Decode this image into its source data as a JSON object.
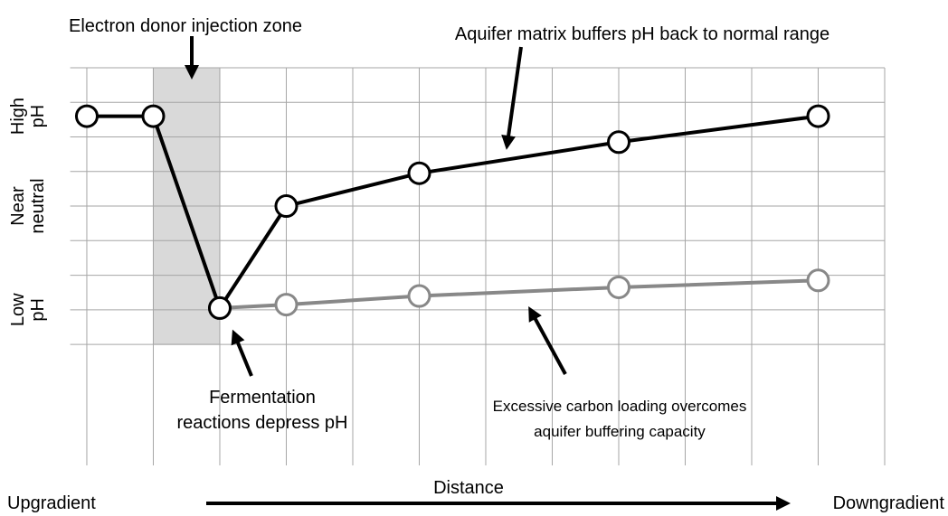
{
  "chart_data": {
    "type": "line",
    "x_label": "Distance",
    "x_start_label": "Upgradient",
    "x_end_label": "Downgradient",
    "xlim": [
      -0.25,
      12
    ],
    "ylim": [
      -3.5,
      8
    ],
    "x_gridlines": [
      0,
      1,
      2,
      3,
      4,
      5,
      6,
      7,
      8,
      9,
      10,
      11,
      12
    ],
    "y_gridlines": [
      0,
      1,
      2,
      3,
      4,
      5,
      6,
      7,
      8
    ],
    "yticks": [
      {
        "value": 6.6,
        "label": "High pH"
      },
      {
        "value": 4,
        "label": "Near neutral"
      },
      {
        "value": 1,
        "label": "Low pH"
      }
    ],
    "shaded_zone": [
      1,
      2
    ],
    "series": [
      {
        "name": null,
        "color": "#000000",
        "x": [
          0,
          1,
          2,
          3,
          5,
          8,
          11
        ],
        "values": [
          6.6,
          6.6,
          1.05,
          4,
          4.95,
          5.85,
          6.6
        ]
      },
      {
        "name": null,
        "color": "#888888",
        "x": [
          2,
          3,
          5,
          8,
          11
        ],
        "values": [
          1.05,
          1.15,
          1.4,
          1.65,
          1.85
        ]
      }
    ],
    "annotations": [
      {
        "lines": [
          "Electron donor injection zone"
        ]
      },
      {
        "lines": [
          "Aquifer matrix buffers pH back to normal range"
        ]
      },
      {
        "lines": [
          "Fermentation",
          "reactions depress pH"
        ]
      },
      {
        "lines": [
          "Excessive carbon loading overcomes",
          "aquifer buffering capacity"
        ]
      }
    ]
  }
}
